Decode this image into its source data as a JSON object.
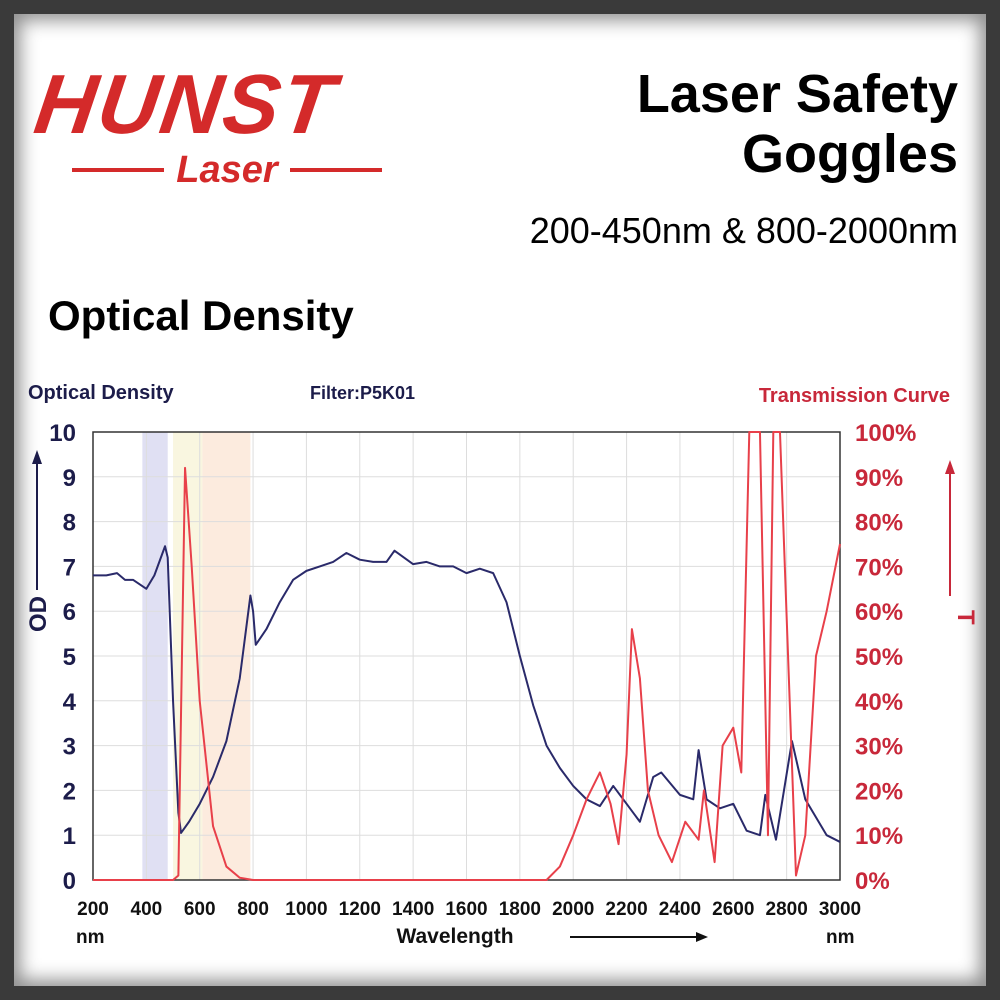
{
  "logo": {
    "brand": "HUNST",
    "sub": "Laser"
  },
  "header": {
    "title_line1": "Laser Safety",
    "title_line2": "Goggles",
    "spec": "200-450nm & 800-2000nm"
  },
  "section_title": "Optical Density",
  "colors": {
    "brand": "#d42a2a",
    "od_line": "#2a2a6a",
    "transmission_line": "#e8404a"
  },
  "chart_data": {
    "type": "line",
    "title": "Filter:P5K01",
    "left_title": "Optical Density",
    "right_title": "Transmission Curve",
    "xlabel": "Wavelength",
    "x_unit": "nm",
    "ylabel_left": "OD",
    "ylabel_right": "T",
    "xlim": [
      200,
      3000
    ],
    "ylim_left": [
      0,
      10
    ],
    "ylim_right": [
      0,
      100
    ],
    "x_ticks": [
      "200",
      "400",
      "600",
      "800",
      "1000",
      "1200",
      "1400",
      "1600",
      "1800",
      "2000",
      "2200",
      "2400",
      "2600",
      "2800",
      "3000"
    ],
    "y_ticks_left": [
      "0",
      "1",
      "2",
      "3",
      "4",
      "5",
      "6",
      "7",
      "8",
      "9",
      "10"
    ],
    "y_ticks_right": [
      "0%",
      "10%",
      "20%",
      "30%",
      "40%",
      "50%",
      "60%",
      "70%",
      "80%",
      "90%",
      "100%"
    ],
    "grid": true,
    "shaded_bands": [
      {
        "name": "violet",
        "range": [
          385,
          480
        ],
        "color": "#d8d8f0"
      },
      {
        "name": "yellow",
        "range": [
          500,
          610
        ],
        "color": "#f8f4d8"
      },
      {
        "name": "orange",
        "range": [
          610,
          790
        ],
        "color": "#fbe6d6"
      }
    ],
    "series": [
      {
        "name": "Optical Density",
        "axis": "left",
        "color": "#2a2a6a",
        "points": [
          [
            200,
            6.8
          ],
          [
            250,
            6.8
          ],
          [
            290,
            6.85
          ],
          [
            320,
            6.7
          ],
          [
            350,
            6.7
          ],
          [
            400,
            6.5
          ],
          [
            430,
            6.8
          ],
          [
            470,
            7.45
          ],
          [
            480,
            7.2
          ],
          [
            500,
            4
          ],
          [
            520,
            1.5
          ],
          [
            530,
            1.05
          ],
          [
            560,
            1.3
          ],
          [
            600,
            1.7
          ],
          [
            650,
            2.3
          ],
          [
            700,
            3.1
          ],
          [
            750,
            4.5
          ],
          [
            790,
            6.35
          ],
          [
            800,
            6.0
          ],
          [
            810,
            5.25
          ],
          [
            850,
            5.6
          ],
          [
            900,
            6.2
          ],
          [
            950,
            6.7
          ],
          [
            1000,
            6.9
          ],
          [
            1050,
            7.0
          ],
          [
            1100,
            7.1
          ],
          [
            1150,
            7.3
          ],
          [
            1200,
            7.15
          ],
          [
            1250,
            7.1
          ],
          [
            1300,
            7.1
          ],
          [
            1330,
            7.35
          ],
          [
            1400,
            7.05
          ],
          [
            1450,
            7.1
          ],
          [
            1500,
            7.0
          ],
          [
            1550,
            7.0
          ],
          [
            1600,
            6.85
          ],
          [
            1650,
            6.95
          ],
          [
            1700,
            6.85
          ],
          [
            1750,
            6.2
          ],
          [
            1800,
            5.0
          ],
          [
            1850,
            3.9
          ],
          [
            1900,
            3.0
          ],
          [
            1950,
            2.5
          ],
          [
            2000,
            2.1
          ],
          [
            2050,
            1.8
          ],
          [
            2100,
            1.65
          ],
          [
            2150,
            2.1
          ],
          [
            2200,
            1.7
          ],
          [
            2250,
            1.3
          ],
          [
            2300,
            2.3
          ],
          [
            2330,
            2.4
          ],
          [
            2400,
            1.9
          ],
          [
            2450,
            1.8
          ],
          [
            2470,
            2.9
          ],
          [
            2500,
            1.8
          ],
          [
            2550,
            1.6
          ],
          [
            2600,
            1.7
          ],
          [
            2650,
            1.1
          ],
          [
            2700,
            1.0
          ],
          [
            2720,
            1.9
          ],
          [
            2760,
            0.9
          ],
          [
            2820,
            3.1
          ],
          [
            2870,
            1.8
          ],
          [
            2950,
            1.0
          ],
          [
            3000,
            0.85
          ]
        ]
      },
      {
        "name": "Transmission",
        "axis": "right",
        "color": "#e8404a",
        "points": [
          [
            200,
            0
          ],
          [
            500,
            0
          ],
          [
            520,
            1
          ],
          [
            545,
            92
          ],
          [
            570,
            70
          ],
          [
            600,
            40
          ],
          [
            650,
            12
          ],
          [
            700,
            3
          ],
          [
            750,
            0.5
          ],
          [
            800,
            0
          ],
          [
            1900,
            0
          ],
          [
            1950,
            3
          ],
          [
            2000,
            10
          ],
          [
            2050,
            18
          ],
          [
            2100,
            24
          ],
          [
            2140,
            17
          ],
          [
            2170,
            8
          ],
          [
            2200,
            28
          ],
          [
            2220,
            56
          ],
          [
            2250,
            45
          ],
          [
            2280,
            20
          ],
          [
            2320,
            10
          ],
          [
            2370,
            4
          ],
          [
            2420,
            13
          ],
          [
            2470,
            9
          ],
          [
            2490,
            20
          ],
          [
            2530,
            4
          ],
          [
            2560,
            30
          ],
          [
            2600,
            34
          ],
          [
            2630,
            24
          ],
          [
            2660,
            100
          ],
          [
            2700,
            100
          ],
          [
            2730,
            10
          ],
          [
            2750,
            100
          ],
          [
            2775,
            100
          ],
          [
            2835,
            1
          ],
          [
            2870,
            10
          ],
          [
            2910,
            50
          ],
          [
            2950,
            60
          ],
          [
            3000,
            75
          ]
        ]
      }
    ]
  }
}
